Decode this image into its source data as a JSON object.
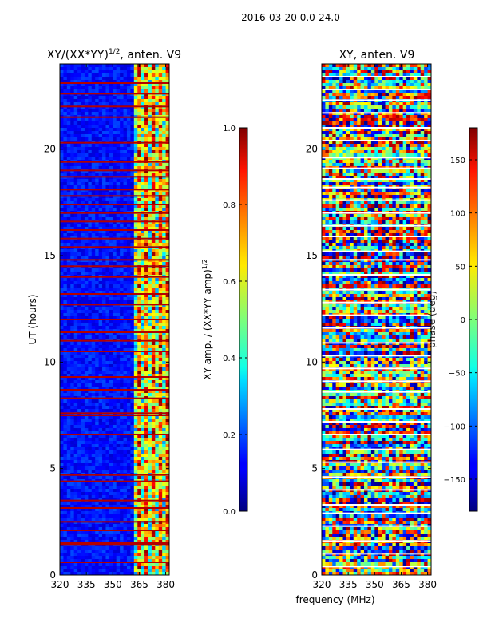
{
  "chart_data": {
    "type": "heatmap",
    "suptitle": "2016-03-20 0.0-24.0",
    "shared_xlabel": "frequency (MHz)",
    "panels": [
      {
        "id": "amp",
        "title": "XY/(XX*YY)",
        "title_sup": "1/2",
        "title_rest": ", anten. V9",
        "ylabel": "UT (hours)",
        "xlim": [
          320,
          382
        ],
        "ylim": [
          0,
          24
        ],
        "xticks": [
          320,
          335,
          350,
          365,
          380
        ],
        "yticks": [
          0,
          5,
          10,
          15,
          20
        ],
        "colorbar": {
          "label": "XY amp. / (XX*YY amp)",
          "label_sup": "1/2",
          "range": [
            0.0,
            1.0
          ],
          "ticks": [
            0.0,
            0.2,
            0.4,
            0.6,
            0.8,
            1.0
          ],
          "tick_labels": [
            "0.0",
            "0.2",
            "0.4",
            "0.6",
            "0.8",
            "1.0"
          ]
        },
        "red_rows_hours": [
          0.6,
          1.45,
          1.5,
          2.1,
          2.5,
          3.15,
          3.5,
          4.4,
          4.7,
          6.6,
          7.5,
          7.6,
          8.3,
          8.7,
          9.3,
          10.5,
          11.0,
          11.4,
          12.0,
          12.7,
          13.2,
          14.0,
          14.5,
          14.8,
          15.4,
          15.8,
          16.2,
          16.6,
          17.0,
          17.4,
          17.8,
          18.1,
          18.7,
          19.0,
          19.4,
          20.3,
          21.5,
          22.0,
          22.6,
          23.1
        ],
        "bright_channel_range_mhz": [
          362,
          382
        ]
      },
      {
        "id": "phase",
        "title": "XY, anten. V9",
        "ylabel": "",
        "xlim": [
          320,
          382
        ],
        "ylim": [
          0,
          24
        ],
        "xticks": [
          320,
          335,
          350,
          365,
          380
        ],
        "yticks": [
          0,
          5,
          10,
          15,
          20
        ],
        "colorbar": {
          "label": "phase (deg)",
          "range": [
            -180,
            180
          ],
          "ticks": [
            -150,
            -100,
            -50,
            0,
            50,
            100,
            150
          ],
          "tick_labels": [
            "−150",
            "−100",
            "−50",
            "0",
            "50",
            "100",
            "150"
          ]
        },
        "white_rows_hours": [
          0.4,
          1.0,
          1.6,
          2.3,
          2.9,
          3.3,
          4.0,
          4.6,
          5.3,
          5.9,
          6.6,
          7.2,
          7.8,
          8.6,
          9.1,
          9.7,
          10.3,
          10.9,
          11.6,
          12.2,
          12.8,
          13.4,
          14.1,
          14.8,
          15.2,
          15.9,
          16.4,
          17.0,
          17.6,
          18.2,
          18.6,
          19.1,
          19.6,
          20.4,
          21.0,
          21.7,
          22.3,
          22.8,
          23.4
        ]
      }
    ]
  }
}
